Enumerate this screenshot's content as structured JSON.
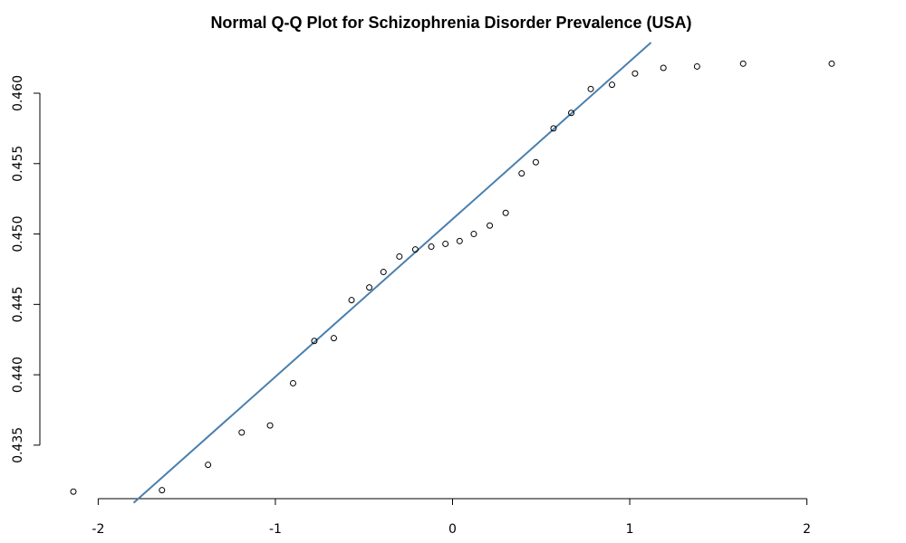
{
  "chart_data": {
    "type": "scatter",
    "title": "Normal Q-Q Plot for Schizophrenia Disorder Prevalence (USA)",
    "xlabel": "",
    "ylabel": "",
    "xlim": [
      -2.14,
      2.14
    ],
    "ylim": [
      0.4312,
      0.4636
    ],
    "x_ticks": [
      -2,
      -1,
      0,
      1,
      2
    ],
    "x_tick_labels": [
      "-2",
      "-1",
      "0",
      "1",
      "2"
    ],
    "y_ticks": [
      0.435,
      0.44,
      0.445,
      0.45,
      0.455,
      0.46
    ],
    "y_tick_labels": [
      "0.435",
      "0.440",
      "0.445",
      "0.450",
      "0.455",
      "0.460"
    ],
    "grid": false,
    "reference_line": {
      "color": "#4a7fad",
      "points": [
        [
          -1.8,
          0.4309
        ],
        [
          1.12,
          0.4636
        ]
      ]
    },
    "series": [
      {
        "marker_color": "#000000",
        "x": [
          -2.14,
          -1.64,
          -1.38,
          -1.19,
          -1.03,
          -0.9,
          -0.78,
          -0.67,
          -0.57,
          -0.47,
          -0.39,
          -0.3,
          -0.21,
          -0.12,
          -0.04,
          0.04,
          0.12,
          0.21,
          0.3,
          0.39,
          0.47,
          0.57,
          0.67,
          0.78,
          0.9,
          1.03,
          1.19,
          1.38,
          1.64,
          2.14
        ],
        "y": [
          0.4317,
          0.4318,
          0.4336,
          0.4359,
          0.4364,
          0.4394,
          0.4424,
          0.4426,
          0.4453,
          0.4462,
          0.4473,
          0.4484,
          0.4489,
          0.4491,
          0.4493,
          0.4495,
          0.45,
          0.4506,
          0.4515,
          0.4543,
          0.4551,
          0.4575,
          0.4586,
          0.4603,
          0.4606,
          0.4614,
          0.4618,
          0.4619,
          0.4621,
          0.4621
        ]
      }
    ]
  }
}
